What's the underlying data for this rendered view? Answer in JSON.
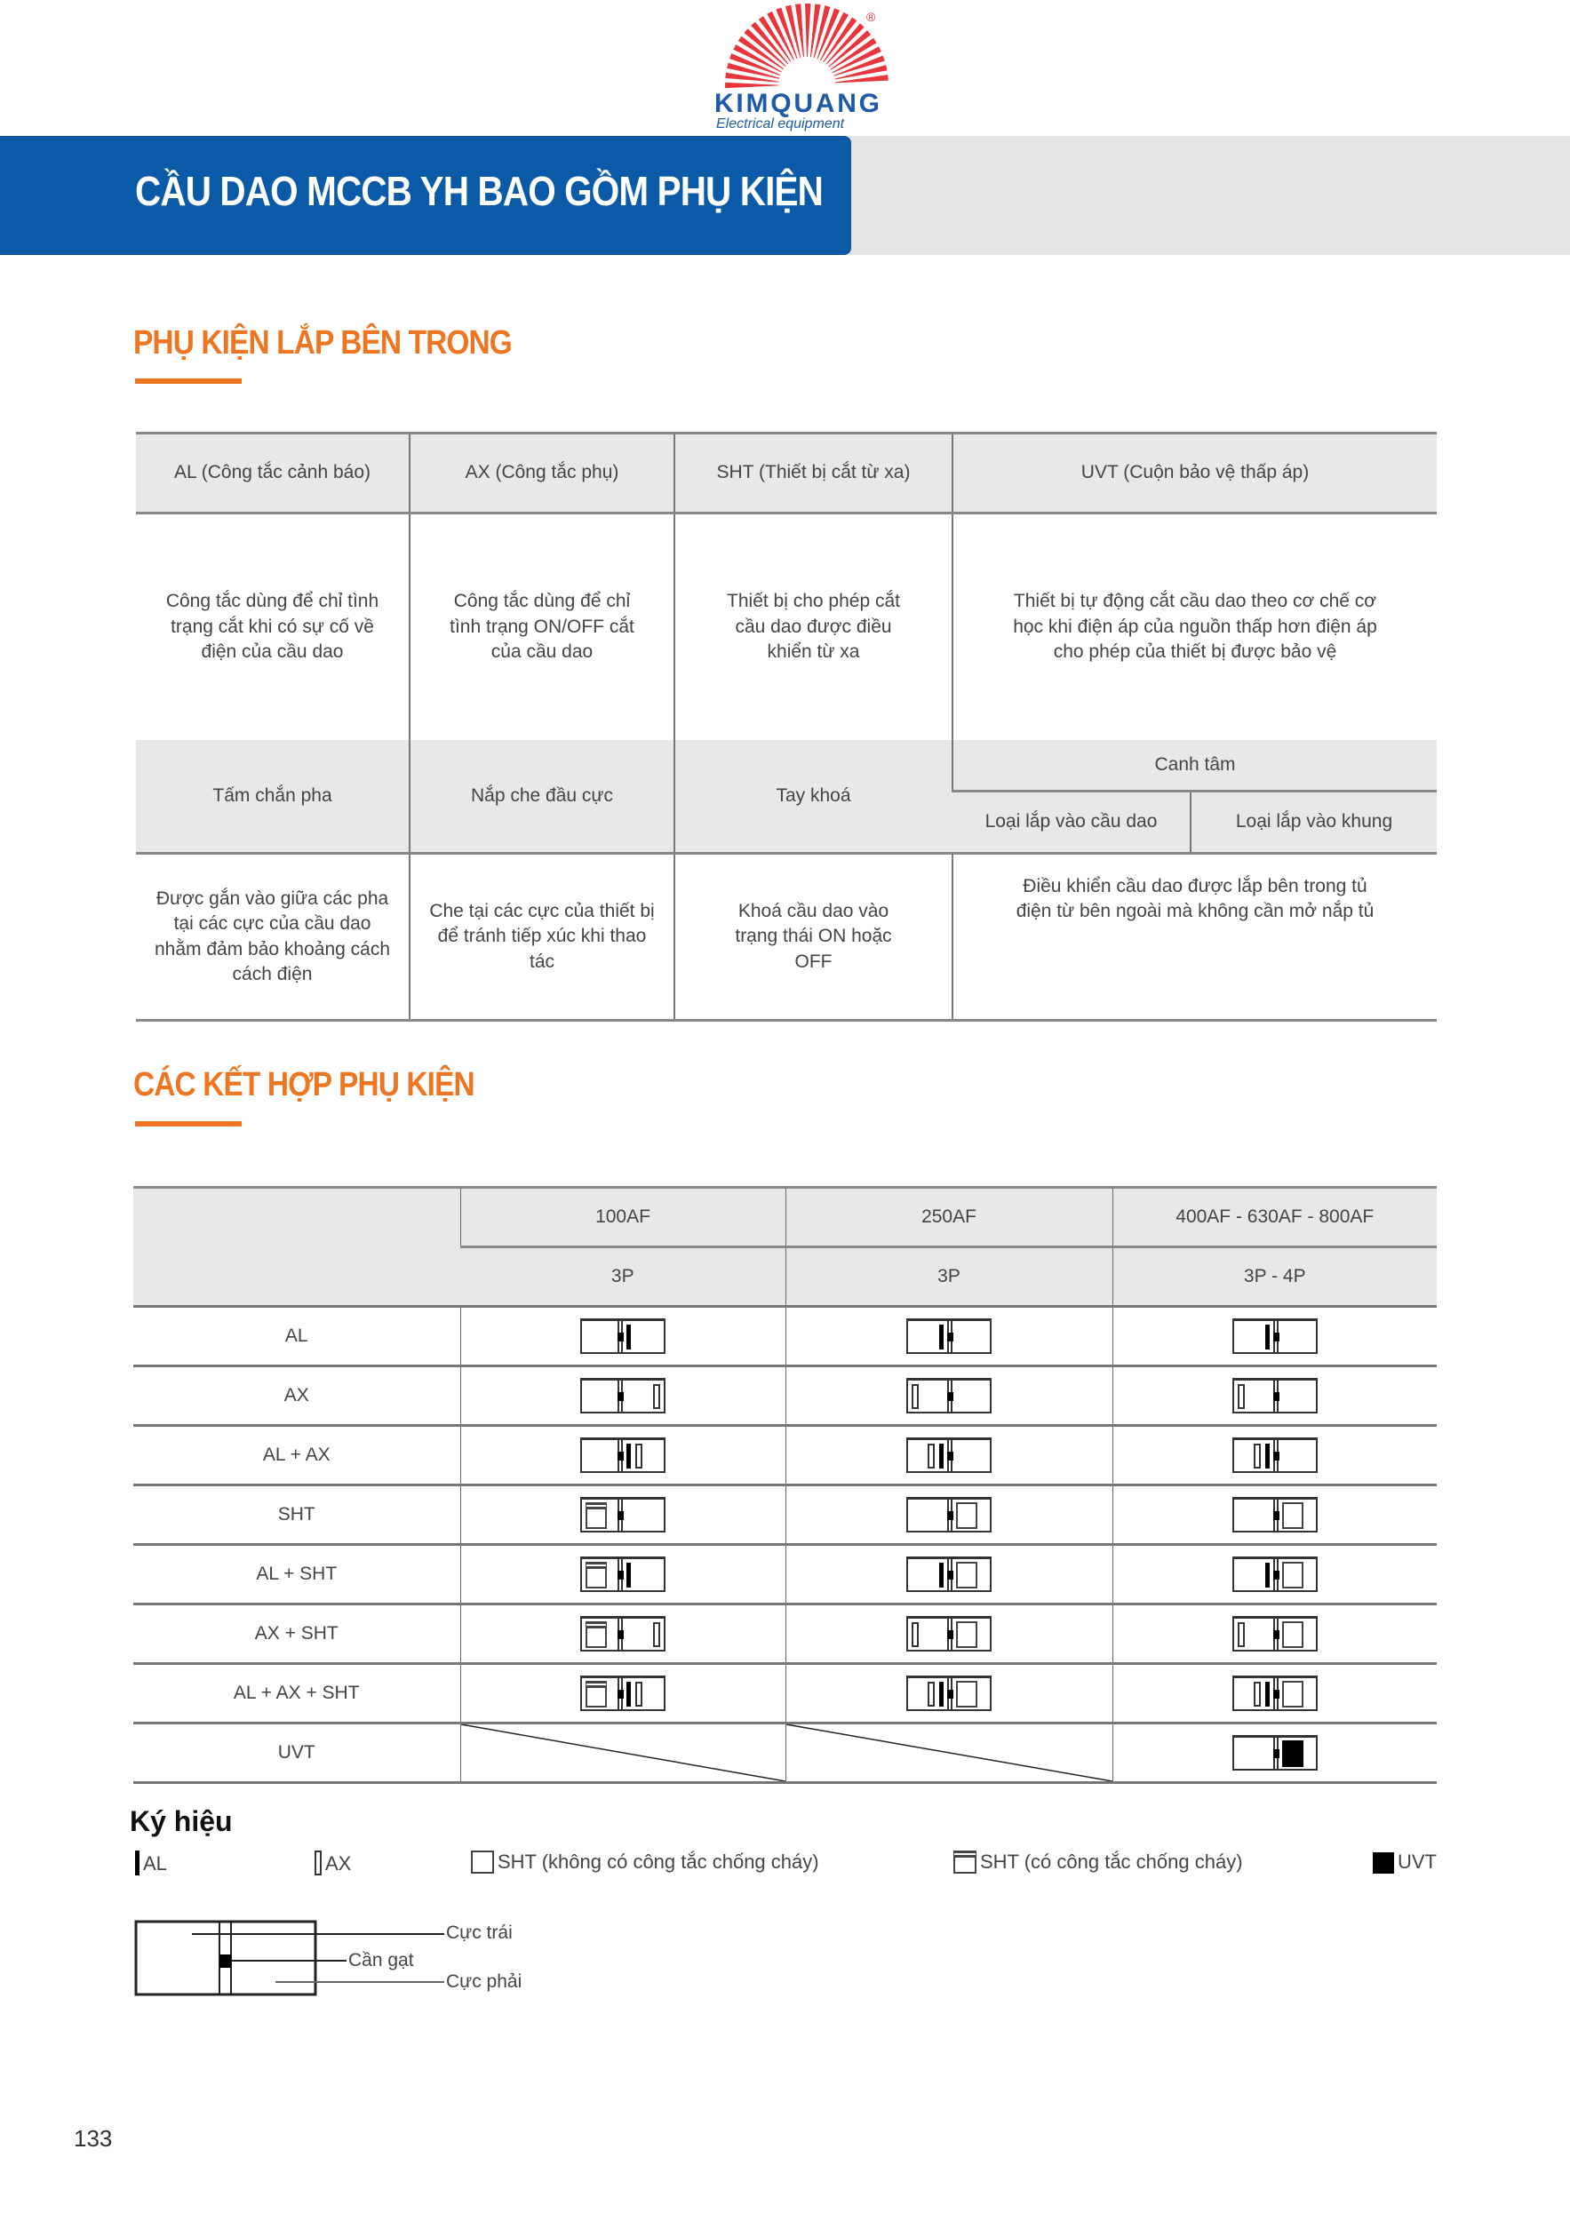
{
  "logo": {
    "brand": "KIMQUANG",
    "tagline": "Electrical equipment",
    "mark": "®",
    "colors": {
      "rays": "#e8373c",
      "text": "#1f5aa6"
    }
  },
  "header": {
    "title": "CẦU DAO MCCB YH BAO GỒM PHỤ KIỆN",
    "bar_color": "#0b5aa8"
  },
  "section1": {
    "title": "PHỤ KIỆN LẮP BÊN TRONG",
    "row1_headers": [
      "AL (Công tắc cảnh báo)",
      "AX (Công tắc phụ)",
      "SHT (Thiết bị cắt từ xa)",
      "UVT (Cuộn bảo vệ thấp áp)"
    ],
    "row1_desc": [
      "Công tắc dùng để chỉ tình trạng cắt khi có sự cố về điện của cầu dao",
      "Công tắc dùng để chỉ tình trạng ON/OFF cắt của cầu dao",
      "Thiết bị cho phép cắt cầu dao được điều khiển từ xa",
      "Thiết bị tự động cắt cầu dao theo cơ chế cơ học khi điện áp của nguồn thấp hơn điện áp cho phép của thiết bị được bảo vệ"
    ],
    "row2_headers": [
      "Tấm chắn pha",
      "Nắp che đầu cực",
      "Tay khoá",
      "Canh tâm"
    ],
    "row2_subheaders": [
      "Loại lắp vào cầu dao",
      "Loại lắp vào khung"
    ],
    "row2_desc": [
      "Được gắn vào giữa các pha tại các cực của cầu dao nhằm đảm bảo khoảng cách cách điện",
      "Che tại các cực của thiết bị để tránh tiếp xúc khi thao tác",
      "Khoá cầu dao vào trạng thái ON hoặc OFF",
      "Điều khiển cầu dao được lắp bên trong tủ điện từ bên ngoài mà không cần mở nắp tủ"
    ]
  },
  "section2": {
    "title": "CÁC KẾT HỢP PHỤ KIỆN",
    "frames": [
      "100AF",
      "250AF",
      "400AF - 630AF - 800AF"
    ],
    "poles": [
      "3P",
      "3P",
      "3P - 4P"
    ],
    "rows": [
      {
        "label": "AL",
        "cells": [
          {
            "left": [],
            "right": [
              "AL"
            ]
          },
          {
            "left": [
              "AL"
            ],
            "right": []
          },
          {
            "left": [
              "AL"
            ],
            "right": []
          }
        ]
      },
      {
        "label": "AX",
        "cells": [
          {
            "left": [],
            "right": [
              "AX"
            ],
            "far": true
          },
          {
            "left": [
              "AX"
            ],
            "right": [],
            "far": true
          },
          {
            "left": [
              "AX"
            ],
            "right": [],
            "far": true
          }
        ]
      },
      {
        "label": "AL + AX",
        "cells": [
          {
            "left": [],
            "right": [
              "AL",
              "AX"
            ]
          },
          {
            "left": [
              "AX",
              "AL"
            ],
            "right": []
          },
          {
            "left": [
              "AX",
              "AL"
            ],
            "right": []
          }
        ]
      },
      {
        "label": "SHT",
        "cells": [
          {
            "left": [
              "SHTF"
            ],
            "right": []
          },
          {
            "left": [],
            "right": [
              "SHT"
            ]
          },
          {
            "left": [],
            "right": [
              "SHT"
            ]
          }
        ]
      },
      {
        "label": "AL + SHT",
        "cells": [
          {
            "left": [
              "SHTF"
            ],
            "right": [
              "AL"
            ]
          },
          {
            "left": [
              "AL"
            ],
            "right": [
              "SHT"
            ]
          },
          {
            "left": [
              "AL"
            ],
            "right": [
              "SHT"
            ]
          }
        ]
      },
      {
        "label": "AX + SHT",
        "cells": [
          {
            "left": [
              "SHTF"
            ],
            "right": [
              "AX"
            ],
            "far": true
          },
          {
            "left": [
              "AX"
            ],
            "right": [
              "SHT"
            ],
            "far": true
          },
          {
            "left": [
              "AX"
            ],
            "right": [
              "SHT"
            ],
            "far": true
          }
        ]
      },
      {
        "label": "AL + AX + SHT",
        "cells": [
          {
            "left": [
              "SHTF"
            ],
            "right": [
              "AL",
              "AX"
            ]
          },
          {
            "left": [
              "AX",
              "AL"
            ],
            "right": [
              "SHT"
            ]
          },
          {
            "left": [
              "AX",
              "AL"
            ],
            "right": [
              "SHT"
            ]
          }
        ]
      },
      {
        "label": "UVT",
        "cells": [
          null,
          null,
          {
            "left": [],
            "right": [
              "UVT"
            ]
          }
        ]
      }
    ]
  },
  "legend": {
    "title": "Ký hiệu",
    "items": [
      {
        "icon": "AL",
        "label": "AL"
      },
      {
        "icon": "AX",
        "label": "AX"
      },
      {
        "icon": "SHT",
        "label": "SHT (không có công tắc chống cháy)"
      },
      {
        "icon": "SHTF",
        "label": "SHT (có công tắc chống cháy)"
      },
      {
        "icon": "UVT",
        "label": "UVT"
      }
    ],
    "diagram": {
      "left_pole": "Cực trái",
      "lever": "Cần gạt",
      "right_pole": "Cực phải"
    }
  },
  "page_number": "133"
}
